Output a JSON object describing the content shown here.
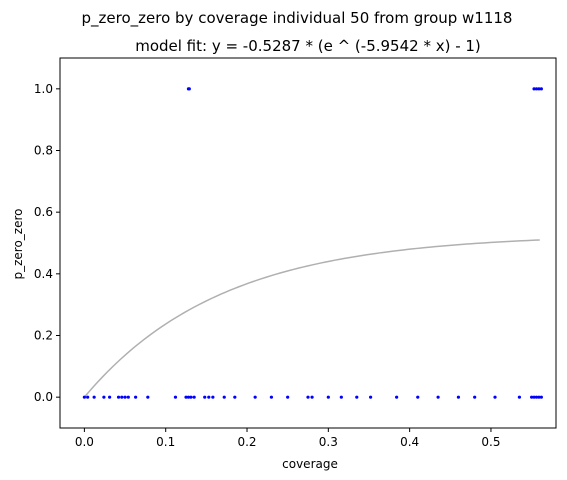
{
  "chart_data": {
    "type": "scatter",
    "title": "p_zero_zero by coverage individual 50 from group w1118",
    "subtitle": "model fit: y = -0.5287 * (e ^ (-5.9542 * x) - 1)",
    "xlabel": "coverage",
    "ylabel": "p_zero_zero",
    "xlim": [
      -0.03,
      0.58
    ],
    "ylim": [
      -0.1,
      1.1
    ],
    "x_ticks": [
      "0.0",
      "0.1",
      "0.2",
      "0.3",
      "0.4",
      "0.5"
    ],
    "y_ticks": [
      "0.0",
      "0.2",
      "0.4",
      "0.6",
      "0.8",
      "1.0"
    ],
    "grid": false,
    "series": [
      {
        "kind": "scatter",
        "color": "#0000ff",
        "points": [
          [
            0.0,
            0.0
          ],
          [
            0.004,
            0.0
          ],
          [
            0.012,
            0.0
          ],
          [
            0.024,
            0.0
          ],
          [
            0.031,
            0.0
          ],
          [
            0.042,
            0.0
          ],
          [
            0.046,
            0.0
          ],
          [
            0.05,
            0.0
          ],
          [
            0.054,
            0.0
          ],
          [
            0.063,
            0.0
          ],
          [
            0.078,
            0.0
          ],
          [
            0.112,
            0.0
          ],
          [
            0.125,
            0.0
          ],
          [
            0.128,
            0.0
          ],
          [
            0.131,
            0.0
          ],
          [
            0.135,
            0.0
          ],
          [
            0.148,
            0.0
          ],
          [
            0.153,
            0.0
          ],
          [
            0.158,
            0.0
          ],
          [
            0.172,
            0.0
          ],
          [
            0.185,
            0.0
          ],
          [
            0.21,
            0.0
          ],
          [
            0.23,
            0.0
          ],
          [
            0.25,
            0.0
          ],
          [
            0.275,
            0.0
          ],
          [
            0.28,
            0.0
          ],
          [
            0.3,
            0.0
          ],
          [
            0.316,
            0.0
          ],
          [
            0.335,
            0.0
          ],
          [
            0.352,
            0.0
          ],
          [
            0.384,
            0.0
          ],
          [
            0.41,
            0.0
          ],
          [
            0.435,
            0.0
          ],
          [
            0.46,
            0.0
          ],
          [
            0.48,
            0.0
          ],
          [
            0.505,
            0.0
          ],
          [
            0.535,
            0.0
          ],
          [
            0.55,
            0.0
          ],
          [
            0.553,
            0.0
          ],
          [
            0.556,
            0.0
          ],
          [
            0.559,
            0.0
          ],
          [
            0.562,
            0.0
          ],
          [
            0.128,
            1.0
          ],
          [
            0.129,
            1.0
          ],
          [
            0.553,
            1.0
          ],
          [
            0.556,
            1.0
          ],
          [
            0.559,
            1.0
          ],
          [
            0.562,
            1.0
          ]
        ]
      },
      {
        "kind": "line",
        "color": "#b0b0b0",
        "function": "model_fit",
        "a": -0.5287,
        "b": -5.9542,
        "x_range": [
          0.0,
          0.56
        ]
      }
    ]
  }
}
